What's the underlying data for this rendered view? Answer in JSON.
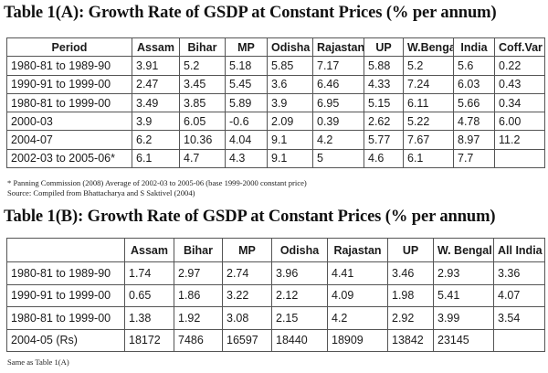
{
  "table_a": {
    "title": "Table 1(A): Growth Rate of GSDP at Constant Prices (% per annum)",
    "headers": [
      "Period",
      "Assam",
      "Bihar",
      "MP",
      "Odisha",
      "Rajastan",
      "UP",
      "W.Bengal",
      "India",
      "Coff.Var"
    ],
    "rows": [
      [
        "1980-81 to 1989-90",
        "3.91",
        "5.2",
        "5.18",
        "5.85",
        "7.17",
        "5.88",
        "5.2",
        "5.6",
        "0.22"
      ],
      [
        "1990-91 to 1999-00",
        "2.47",
        "3.45",
        "5.45",
        "3.6",
        "6.46",
        "4.33",
        "7.24",
        "6.03",
        "0.43"
      ],
      [
        "1980-81 to 1999-00",
        "3.49",
        "3.85",
        "5.89",
        "3.9",
        "6.95",
        "5.15",
        "6.11",
        "5.66",
        "0.34"
      ],
      [
        "2000-03",
        "3.9",
        "6.05",
        "-0.6",
        "2.09",
        "0.39",
        "2.62",
        "5.22",
        "4.78",
        "6.00"
      ],
      [
        "2004-07",
        "6.2",
        "10.36",
        "4.04",
        "9.1",
        "4.2",
        "5.77",
        "7.67",
        "8.97",
        "11.2"
      ],
      [
        "2002-03 to 2005-06*",
        "6.1",
        "4.7",
        "4.3",
        "9.1",
        "5",
        "4.6",
        "6.1",
        "7.7",
        ""
      ]
    ],
    "footnote": "* Panning Commission (2008) Average of 2002-03 to 2005-06 (base 1999-2000 constant price)",
    "source": "Source: Compiled from Bhattacharya and S Saktivel (2004)"
  },
  "table_b": {
    "title": "Table 1(B): Growth Rate of GSDP at Constant Prices (% per annum)",
    "headers": [
      "",
      "Assam",
      "Bihar",
      "MP",
      "Odisha",
      "Rajastan",
      "UP",
      "W. Bengal",
      "All India"
    ],
    "rows": [
      [
        "1980-81 to 1989-90",
        "1.74",
        "2.97",
        "2.74",
        "3.96",
        "4.41",
        "3.46",
        "2.93",
        "3.36"
      ],
      [
        "1990-91 to 1999-00",
        "0.65",
        "1.86",
        "3.22",
        "2.12",
        "4.09",
        "1.98",
        "5.41",
        "4.07"
      ],
      [
        "1980-81 to 1999-00",
        "1.38",
        "1.92",
        "3.08",
        "2.15",
        "4.2",
        "2.92",
        "3.99",
        "3.54"
      ],
      [
        "2004-05 (Rs)",
        "18172",
        "7486",
        "16597",
        "18440",
        "18909",
        "13842",
        "23145",
        ""
      ]
    ],
    "note": "Same as Table 1(A)"
  }
}
